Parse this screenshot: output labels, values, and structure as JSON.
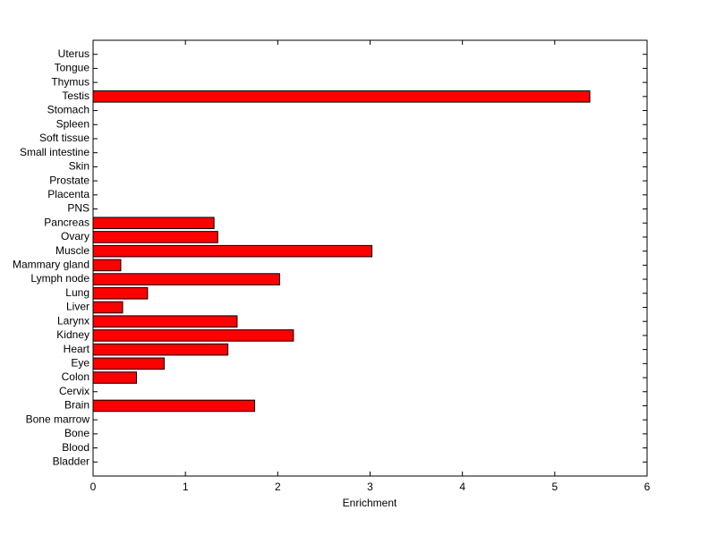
{
  "chart_data": {
    "type": "barh",
    "xlabel": "Enrichment",
    "categories": [
      "Bladder",
      "Blood",
      "Bone",
      "Bone marrow",
      "Brain",
      "Cervix",
      "Colon",
      "Eye",
      "Heart",
      "Kidney",
      "Larynx",
      "Liver",
      "Lung",
      "Lymph node",
      "Mammary gland",
      "Muscle",
      "Ovary",
      "Pancreas",
      "PNS",
      "Placenta",
      "Prostate",
      "Skin",
      "Small intestine",
      "Soft tissue",
      "Spleen",
      "Stomach",
      "Testis",
      "Thymus",
      "Tongue",
      "Uterus"
    ],
    "values": [
      0,
      0,
      0,
      0,
      1.75,
      0,
      0.47,
      0.77,
      1.46,
      2.17,
      1.56,
      0.32,
      0.59,
      2.02,
      0.3,
      3.02,
      1.35,
      1.31,
      0,
      0,
      0,
      0,
      0,
      0,
      0,
      0,
      5.38,
      0,
      0,
      0
    ],
    "color": "#ff0000",
    "xlim": [
      0,
      6
    ],
    "xticks": [
      0,
      1,
      2,
      3,
      4,
      5,
      6
    ]
  }
}
